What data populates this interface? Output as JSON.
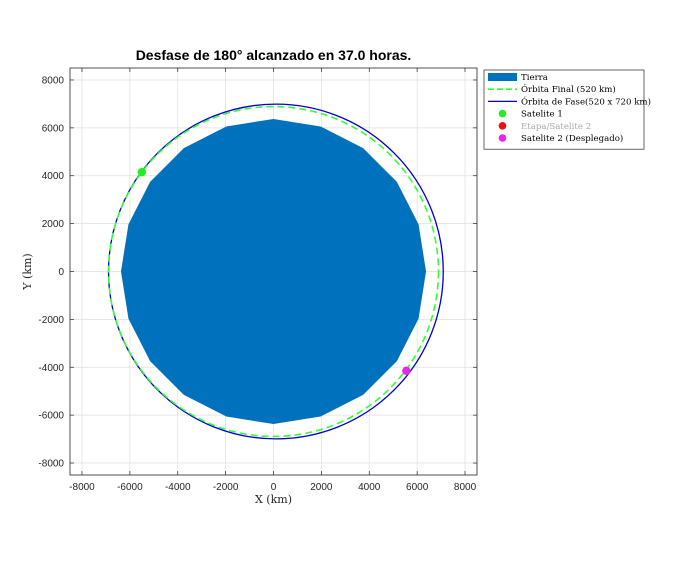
{
  "chart_data": {
    "type": "scatter",
    "title": "Desfase de 180° alcanzado en 37.0 horas.",
    "xlabel": "X (km)",
    "ylabel": "Y (km)",
    "xlim": [
      -8500,
      8500
    ],
    "ylim": [
      -8500,
      8500
    ],
    "xticks": [
      -8000,
      -6000,
      -4000,
      -2000,
      0,
      2000,
      4000,
      6000,
      8000
    ],
    "yticks": [
      -8000,
      -6000,
      -4000,
      -2000,
      0,
      2000,
      4000,
      6000,
      8000
    ],
    "grid": true,
    "legend_position": "outside-top-right",
    "earth": {
      "radius_km": 6371,
      "polygon_sides": 20,
      "color": "#0072BD"
    },
    "final_orbit": {
      "altitude_km": 520,
      "radius_km": 6891,
      "color": "#33FF33",
      "style": "dashed"
    },
    "phasing_orbit": {
      "perigee_alt_km": 520,
      "apogee_alt_km": 720,
      "color": "#0000CC",
      "style": "solid"
    },
    "satellite_1": {
      "x": -5500,
      "y": 4150,
      "color": "#22EE22"
    },
    "satellite_2": {
      "x": 5550,
      "y": -4150,
      "color": "#EE22EE"
    },
    "legend": [
      {
        "label": "Tierra",
        "marker": "patch",
        "color": "#0072BD",
        "faded": false
      },
      {
        "label": "Órbita Final (520 km)",
        "marker": "dashed-line",
        "color": "#33FF33",
        "faded": false
      },
      {
        "label": "Órbita de Fase(520 x 720 km)",
        "marker": "line",
        "color": "#0000CC",
        "faded": false
      },
      {
        "label": "Satelite 1",
        "marker": "dot",
        "color": "#22EE22",
        "faded": false
      },
      {
        "label": "Etapa/Satelite 2",
        "marker": "dot",
        "color": "#EE1111",
        "faded": true
      },
      {
        "label": "Satelite 2 (Desplegado)",
        "marker": "dot",
        "color": "#EE22EE",
        "faded": false
      }
    ]
  }
}
